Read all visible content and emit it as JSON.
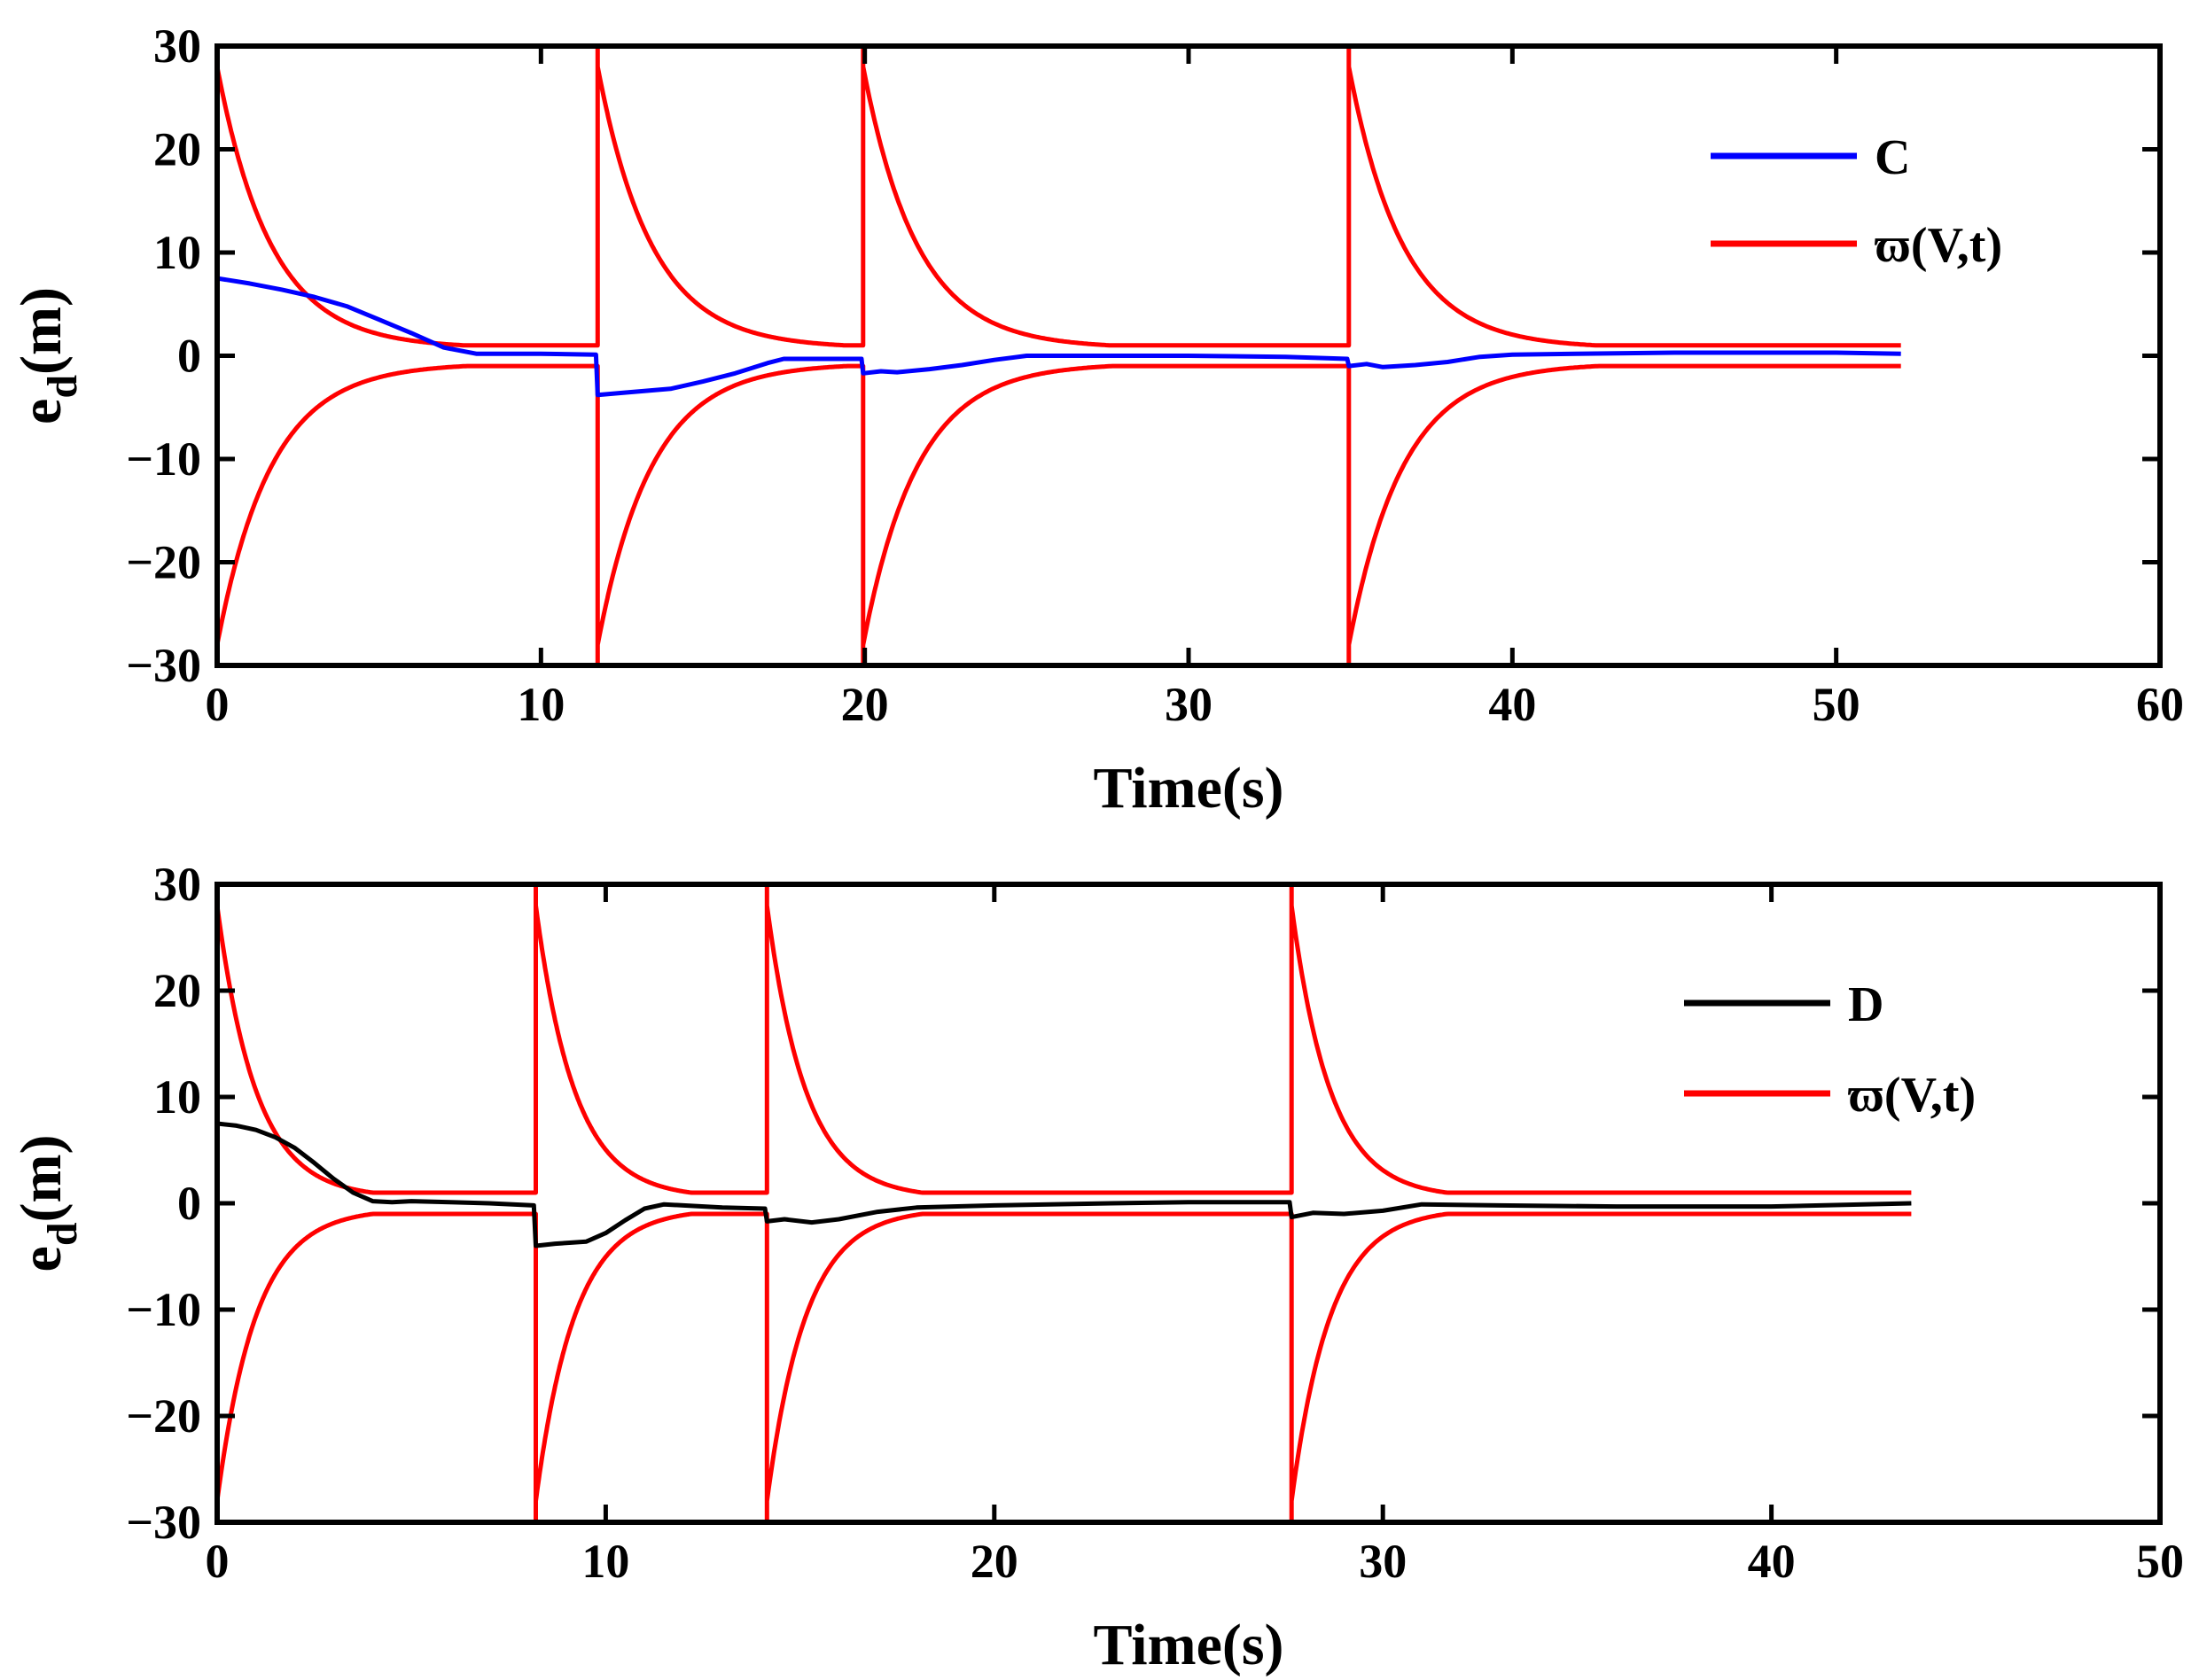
{
  "colors": {
    "bound": "#ff0000",
    "series_c": "#0000ff",
    "series_d": "#000000"
  },
  "chart_data": [
    {
      "type": "line",
      "xlabel": "Time(s)",
      "ylabel_main": "e",
      "ylabel_sub": "d",
      "ylabel_unit": "(m)",
      "xlim": [
        0,
        60
      ],
      "ylim": [
        -30,
        30
      ],
      "xticks": [
        0,
        10,
        20,
        30,
        40,
        50,
        60
      ],
      "yticks": [
        30,
        20,
        10,
        0,
        -10,
        -20,
        -30
      ],
      "xtick_labels": [
        "0",
        "10",
        "20",
        "30",
        "40",
        "50",
        "60"
      ],
      "ytick_labels": [
        "30",
        "20",
        "10",
        "0",
        "−10",
        "−20",
        "−30"
      ],
      "legend_position": "top-right",
      "series": [
        {
          "name": "C",
          "color": "#0000ff",
          "x": [
            0,
            1,
            2,
            3,
            4,
            5,
            6,
            7,
            8,
            9,
            10,
            11.7,
            11.75,
            12.5,
            14,
            15,
            16,
            17,
            17.5,
            18.5,
            19.9,
            19.95,
            20.5,
            21,
            22,
            23,
            24,
            25,
            27,
            30,
            33,
            34.9,
            34.95,
            35.5,
            36,
            37,
            38,
            39,
            40,
            42,
            45,
            48,
            50,
            52
          ],
          "values": [
            7.5,
            7,
            6.4,
            5.7,
            4.8,
            3.5,
            2.2,
            0.8,
            0.2,
            0.2,
            0.2,
            0.1,
            -3.8,
            -3.6,
            -3.2,
            -2.5,
            -1.7,
            -0.7,
            -0.3,
            -0.3,
            -0.3,
            -1.7,
            -1.5,
            -1.6,
            -1.3,
            -0.9,
            -0.4,
            0,
            0,
            0,
            -0.1,
            -0.3,
            -1,
            -0.8,
            -1.1,
            -0.9,
            -0.6,
            -0.1,
            0.1,
            0.2,
            0.3,
            0.3,
            0.3,
            0.2
          ]
        },
        {
          "name": "ϖ(V,t)",
          "color": "#ff0000",
          "kind": "bound",
          "reset_times": [
            0,
            11.75,
            19.95,
            34.95
          ],
          "end_time": 52,
          "peak": 28,
          "floor": 1,
          "settle_time": 7.7,
          "rate": 0.6
        }
      ]
    },
    {
      "type": "line",
      "xlabel": "Time(s)",
      "ylabel_main": "e",
      "ylabel_sub": "d",
      "ylabel_unit": "(m)",
      "xlim": [
        0,
        50
      ],
      "ylim": [
        -30,
        30
      ],
      "xticks": [
        0,
        10,
        20,
        30,
        40,
        50
      ],
      "yticks": [
        30,
        20,
        10,
        0,
        -10,
        -20,
        -30
      ],
      "xtick_labels": [
        "0",
        "10",
        "20",
        "30",
        "40",
        "50"
      ],
      "ytick_labels": [
        "30",
        "20",
        "10",
        "0",
        "−10",
        "−20",
        "−30"
      ],
      "legend_position": "top-right",
      "series": [
        {
          "name": "D",
          "color": "#000000",
          "x": [
            0,
            0.5,
            1,
            1.5,
            2,
            2.5,
            3,
            3.5,
            4,
            4.5,
            5,
            6,
            7,
            8.15,
            8.2,
            8.7,
            9.5,
            10,
            10.5,
            11,
            11.5,
            12,
            13,
            14.1,
            14.15,
            14.6,
            15.3,
            16,
            17,
            18,
            20,
            23,
            25,
            27.6,
            27.65,
            28.2,
            29,
            30,
            31,
            33,
            36,
            40,
            43.6
          ],
          "values": [
            7.5,
            7.3,
            6.9,
            6.2,
            5.2,
            3.8,
            2.3,
            1,
            0.2,
            0.1,
            0.2,
            0.1,
            0,
            -0.2,
            -4,
            -3.8,
            -3.6,
            -2.8,
            -1.6,
            -0.5,
            -0.1,
            -0.2,
            -0.4,
            -0.5,
            -1.7,
            -1.5,
            -1.8,
            -1.5,
            -0.8,
            -0.4,
            -0.2,
            0,
            0.1,
            0.1,
            -1.3,
            -0.9,
            -1,
            -0.7,
            -0.1,
            -0.2,
            -0.3,
            -0.3,
            0
          ]
        },
        {
          "name": "ϖ(V,t)",
          "color": "#ff0000",
          "kind": "bound",
          "reset_times": [
            0,
            8.2,
            14.15,
            27.65
          ],
          "end_time": 43.6,
          "peak": 28,
          "floor": 1,
          "settle_time": 4,
          "rate": 1.0
        }
      ]
    }
  ]
}
